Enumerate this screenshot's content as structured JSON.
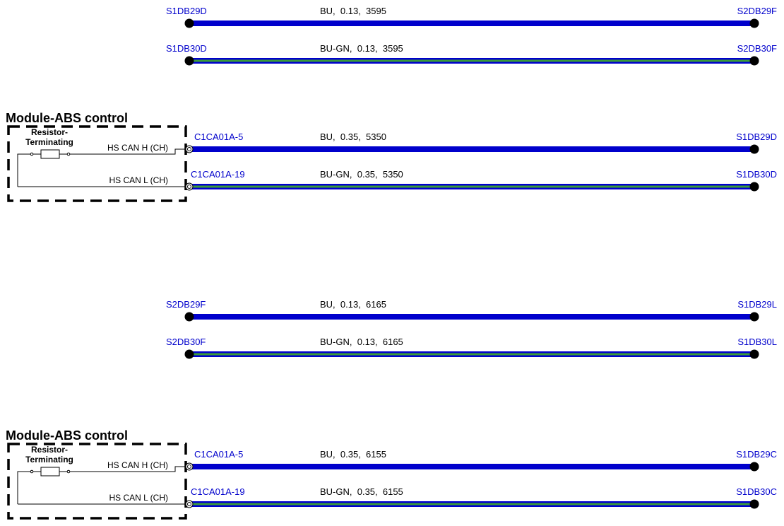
{
  "wires": [
    {
      "from": "S1DB29D",
      "spec": "BU,  0.13,  3595",
      "to": "S2DB29F",
      "color": "#0000cc"
    },
    {
      "from": "S1DB30D",
      "spec": "BU-GN,  0.13,  3595",
      "to": "S2DB30F",
      "color": "#0000cc",
      "stripe": "#3a9a3a"
    },
    {
      "from": "C1CA01A-5",
      "spec": "BU,  0.35,  5350",
      "to": "S1DB29D",
      "color": "#0000cc"
    },
    {
      "from": "C1CA01A-19",
      "spec": "BU-GN,  0.35,  5350",
      "to": "S1DB30D",
      "color": "#0000cc",
      "stripe": "#3a9a3a"
    },
    {
      "from": "S2DB29F",
      "spec": "BU,  0.13,  6165",
      "to": "S1DB29L",
      "color": "#0000cc"
    },
    {
      "from": "S2DB30F",
      "spec": "BU-GN,  0.13,  6165",
      "to": "S1DB30L",
      "color": "#0000cc",
      "stripe": "#3a9a3a"
    },
    {
      "from": "C1CA01A-5",
      "spec": "BU,  0.35,  6155",
      "to": "S1DB29C",
      "color": "#0000cc"
    },
    {
      "from": "C1CA01A-19",
      "spec": "BU-GN,  0.35,  6155",
      "to": "S1DB30C",
      "color": "#0000cc",
      "stripe": "#3a9a3a"
    }
  ],
  "modules": [
    {
      "title": "Module-ABS control",
      "resistor_label": [
        "Resistor-",
        "Terminating"
      ],
      "pins": [
        "HS CAN H (CH)",
        "HS CAN L (CH)"
      ]
    },
    {
      "title": "Module-ABS control",
      "resistor_label": [
        "Resistor-",
        "Terminating"
      ],
      "pins": [
        "HS CAN H (CH)",
        "HS CAN L (CH)"
      ]
    }
  ]
}
